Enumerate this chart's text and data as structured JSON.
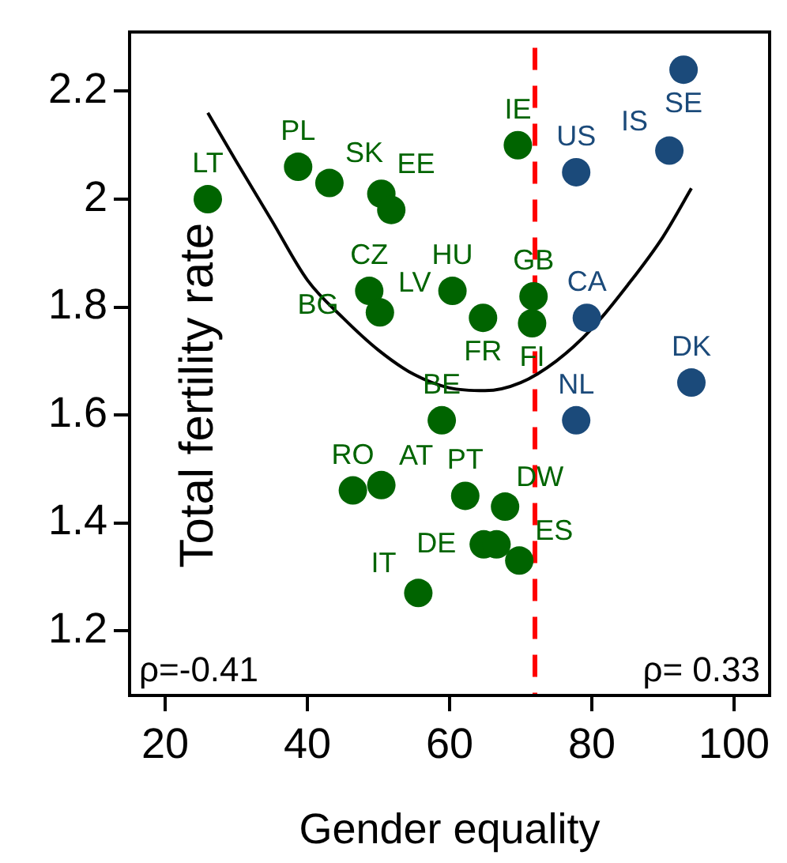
{
  "chart_data": {
    "type": "scatter",
    "xlabel": "Gender equality",
    "ylabel": "Total fertility rate",
    "xlim": [
      15,
      105
    ],
    "ylim": [
      1.08,
      2.31
    ],
    "xticks": [
      20,
      40,
      60,
      80,
      100
    ],
    "yticks": [
      1.2,
      1.4,
      1.6,
      1.8,
      2,
      2.2
    ],
    "grid": false,
    "legend": false,
    "marker": "circle",
    "series": [
      {
        "color": "#006400",
        "x": [
          26,
          38.7,
          43.1,
          50.4,
          51.8,
          48.7,
          50.2,
          60.4,
          64.7,
          71.8,
          71.6,
          69.6,
          58.9,
          46.4,
          50.4,
          62.2,
          67.8,
          64.8,
          66.6,
          69.8,
          55.6
        ],
        "values": [
          2.0,
          2.06,
          2.03,
          2.01,
          1.98,
          1.83,
          1.79,
          1.83,
          1.78,
          1.82,
          1.77,
          2.1,
          1.59,
          1.46,
          1.47,
          1.45,
          1.43,
          1.36,
          1.36,
          1.33,
          1.27
        ]
      },
      {
        "color": "#1b4a7a",
        "x": [
          77.8,
          92.9,
          90.9,
          79.3,
          94,
          77.8
        ],
        "values": [
          2.05,
          2.24,
          2.09,
          1.78,
          1.66,
          1.59
        ]
      },
      {
        "type": "line",
        "color": "#000000",
        "marker": "none",
        "x": [
          26,
          30,
          35,
          40,
          45,
          50,
          55,
          60,
          65,
          70,
          75,
          80,
          85,
          90,
          94
        ],
        "values": [
          2.16,
          2.07,
          1.96,
          1.85,
          1.78,
          1.72,
          1.675,
          1.65,
          1.645,
          1.66,
          1.7,
          1.76,
          1.84,
          1.93,
          2.02
        ]
      }
    ],
    "ref_lines": [
      {
        "axis": "x",
        "value": 72,
        "color": "#ff0000",
        "line_style": "dashed"
      }
    ],
    "annotations": [
      "ρ=-0.41",
      "ρ= 0.33",
      {
        "text": "LT",
        "x": 26,
        "y": 2.0
      },
      {
        "text": "PL",
        "x": 38.7,
        "y": 2.06
      },
      {
        "text": "SK",
        "x": 43.1,
        "y": 2.03
      },
      {
        "text": "EE",
        "x": 50.4,
        "y": 2.01
      },
      {
        "text": "CZ",
        "x": 48.7,
        "y": 1.83
      },
      {
        "text": "LV",
        "x": 50.2,
        "y": 1.79
      },
      {
        "text": "HU",
        "x": 60.4,
        "y": 1.83
      },
      {
        "text": "FR",
        "x": 64.7,
        "y": 1.78
      },
      {
        "text": "GB",
        "x": 71.8,
        "y": 1.82
      },
      {
        "text": "FI",
        "x": 71.6,
        "y": 1.77
      },
      {
        "text": "IE",
        "x": 69.6,
        "y": 2.1
      },
      {
        "text": "BE",
        "x": 58.9,
        "y": 1.59
      },
      {
        "text": "BG",
        "x": 46.4,
        "y": 1.75
      },
      {
        "text": "RO",
        "x": 46.4,
        "y": 1.46
      },
      {
        "text": "AT",
        "x": 50.4,
        "y": 1.47
      },
      {
        "text": "PT",
        "x": 62.2,
        "y": 1.45
      },
      {
        "text": "DW",
        "x": 67.8,
        "y": 1.43
      },
      {
        "text": "DE",
        "x": 64.8,
        "y": 1.36
      },
      {
        "text": "ES",
        "x": 69.8,
        "y": 1.33
      },
      {
        "text": "IT",
        "x": 55.6,
        "y": 1.27
      },
      {
        "text": "US",
        "x": 77.8,
        "y": 2.05
      },
      {
        "text": "SE",
        "x": 92.9,
        "y": 2.24
      },
      {
        "text": "IS",
        "x": 90.9,
        "y": 2.09
      },
      {
        "text": "CA",
        "x": 79.3,
        "y": 1.78
      },
      {
        "text": "DK",
        "x": 94,
        "y": 1.66
      },
      {
        "text": "NL",
        "x": 77.8,
        "y": 1.59
      }
    ]
  }
}
